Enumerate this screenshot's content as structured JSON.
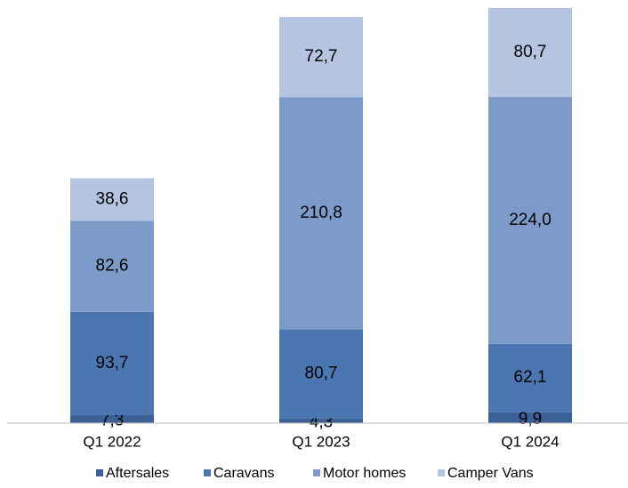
{
  "chart_data": {
    "type": "stacked_bar",
    "categories": [
      "Q1 2022",
      "Q1 2023",
      "Q1 2024"
    ],
    "series": [
      {
        "name": "Aftersales",
        "color": "#3b6196",
        "values": [
          7.3,
          4.3,
          9.9
        ],
        "value_labels": [
          "7,3",
          "4,3",
          "9,9"
        ]
      },
      {
        "name": "Caravans",
        "color": "#4a77b1",
        "values": [
          93.7,
          80.7,
          62.1
        ],
        "value_labels": [
          "93,7",
          "80,7",
          "62,1"
        ]
      },
      {
        "name": "Motor homes",
        "color": "#7d9bc9",
        "values": [
          82.6,
          210.8,
          224.0
        ],
        "value_labels": [
          "82,6",
          "210,8",
          "224,0"
        ]
      },
      {
        "name": "Camper Vans",
        "color": "#b4c4e1",
        "values": [
          38.6,
          72.7,
          80.7
        ],
        "value_labels": [
          "38,6",
          "72,7",
          "80,7"
        ]
      }
    ]
  }
}
